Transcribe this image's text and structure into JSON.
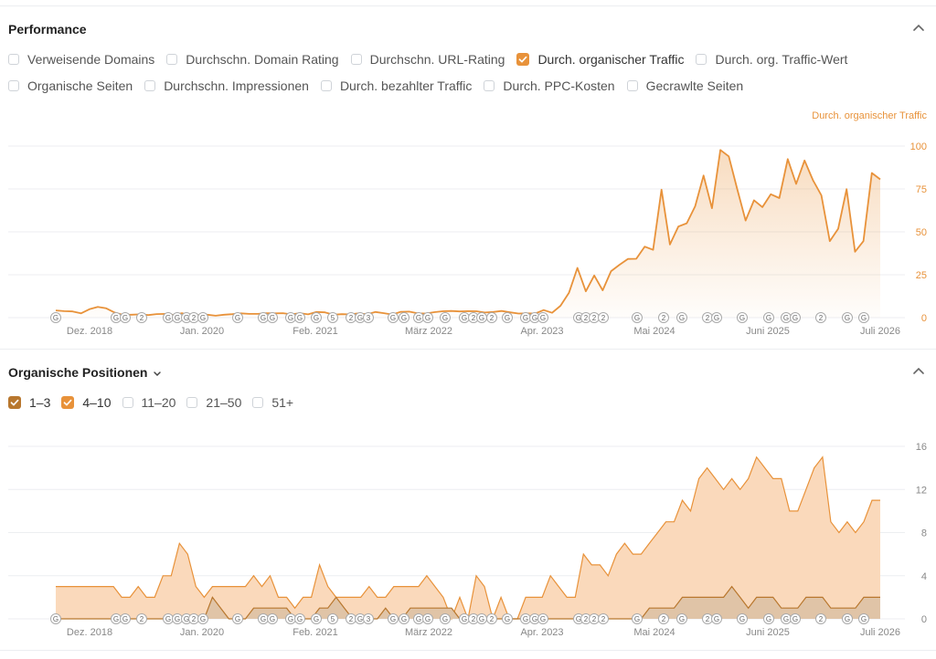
{
  "colors": {
    "orange": "#e8923a",
    "brown": "#b8772e",
    "fill_light": "#fad9bb",
    "fill_brown": "#e0c4a7",
    "grid": "#eceef1",
    "text_muted": "#888888"
  },
  "performance": {
    "title": "Performance",
    "metrics_row1": [
      {
        "label": "Verweisende Domains",
        "checked": false
      },
      {
        "label": "Durchschn. Domain Rating",
        "checked": false
      },
      {
        "label": "Durchschn. URL-Rating",
        "checked": false
      },
      {
        "label": "Durch. organischer Traffic",
        "checked": true
      },
      {
        "label": "Durch. org. Traffic-Wert",
        "checked": false
      }
    ],
    "metrics_row2": [
      {
        "label": "Organische Seiten",
        "checked": false
      },
      {
        "label": "Durchschn. Impressionen",
        "checked": false
      },
      {
        "label": "Durch. bezahlter Traffic",
        "checked": false
      },
      {
        "label": "Durch. PPC-Kosten",
        "checked": false
      },
      {
        "label": "Gecrawlte Seiten",
        "checked": false
      }
    ],
    "series_label": "Durch. organischer Traffic"
  },
  "positions": {
    "title": "Organische Positionen",
    "filters": [
      {
        "label": "1–3",
        "checked": true,
        "color": "#b8772e"
      },
      {
        "label": "4–10",
        "checked": true,
        "color": "#e8923a"
      },
      {
        "label": "11–20",
        "checked": false
      },
      {
        "label": "21–50",
        "checked": false
      },
      {
        "label": "51+",
        "checked": false
      }
    ]
  },
  "chart_data": [
    {
      "type": "area",
      "series": [
        {
          "name": "Durch. organischer Traffic",
          "values": [
            4.2,
            3.8,
            3.6,
            2.5,
            4.9,
            6.3,
            5.4,
            3.0,
            1.6,
            1.7,
            1.9,
            1.5,
            2.1,
            2.2,
            1.6,
            2.6,
            1.1,
            1.5,
            1.7,
            1.1,
            1.7,
            2.0,
            2.5,
            2.2,
            2.2,
            2.6,
            2.5,
            2.6,
            1.9,
            2.6,
            1.9,
            3.3,
            3.1,
            1.7,
            2.0,
            1.9,
            2.5,
            1.9,
            3.3,
            2.6,
            1.8,
            3.4,
            3.5,
            2.5,
            2.4,
            3.2,
            3.7,
            3.9,
            3.6,
            3.8,
            3.7,
            3.0,
            3.3,
            3.9,
            3.1,
            2.4,
            2.5,
            2.4,
            4.4,
            2.8,
            6.9,
            14.4,
            29.0,
            15.3,
            24.6,
            15.9,
            27.1,
            30.8,
            34.2,
            34.3,
            41.4,
            39.5,
            74.6,
            42.6,
            53.1,
            55.0,
            64.9,
            82.8,
            63.8,
            97.7,
            94.0,
            75.0,
            56.6,
            68.4,
            64.4,
            71.9,
            69.7,
            92.4,
            77.9,
            91.6,
            80.1,
            71.3,
            44.6,
            51.8,
            74.9,
            38.4,
            44.6,
            84.3,
            80.6
          ]
        }
      ],
      "x_ticks": [
        "Dez. 2018",
        "Jan. 2020",
        "Feb. 2021",
        "März 2022",
        "Apr. 2023",
        "Mai 2024",
        "Juni 2025",
        "Juli 2026"
      ],
      "y_ticks": [
        0,
        25,
        50,
        75,
        100
      ],
      "ylim": [
        0,
        100
      ],
      "annotations": [
        "G",
        "G",
        "G",
        "2",
        "G",
        "G",
        "G",
        "2",
        "G",
        "G",
        "G",
        "G",
        "G",
        "G",
        "G",
        "5",
        "2",
        "G",
        "3",
        "G",
        "G",
        "G",
        "G",
        "G",
        "G",
        "2",
        "G",
        "2",
        "G",
        "G",
        "G",
        "G",
        "G",
        "2",
        "2",
        "2",
        "G",
        "2",
        "G",
        "2",
        "G",
        "G",
        "G",
        "G",
        "G",
        "2",
        "G",
        "G"
      ]
    },
    {
      "type": "area",
      "series": [
        {
          "name": "4–10",
          "values": [
            3,
            3,
            3,
            3,
            3,
            3,
            3,
            3,
            2,
            2,
            3,
            2,
            2,
            4,
            4,
            7,
            6,
            3,
            2,
            3,
            3,
            3,
            3,
            3,
            4,
            3,
            4,
            2,
            2,
            1,
            2,
            2,
            5,
            3,
            2,
            2,
            2,
            2,
            3,
            2,
            2,
            3,
            3,
            3,
            3,
            4,
            3,
            2,
            0,
            2,
            0,
            4,
            3,
            0,
            2,
            0,
            0,
            2,
            2,
            2,
            4,
            3,
            2,
            2,
            6,
            5,
            5,
            4,
            6,
            7,
            6,
            6,
            7,
            8,
            9,
            9,
            11,
            10,
            13,
            14,
            13,
            12,
            13,
            12,
            13,
            15,
            14,
            13,
            13,
            10,
            10,
            12,
            14,
            15,
            9,
            8,
            9,
            8,
            9,
            11,
            11
          ]
        },
        {
          "name": "1–3",
          "values": [
            0,
            0,
            0,
            0,
            0,
            0,
            0,
            0,
            0,
            0,
            0,
            0,
            0,
            0,
            0,
            0,
            0,
            0,
            0,
            2,
            1,
            0,
            0,
            0,
            1,
            1,
            1,
            1,
            1,
            0,
            0,
            0,
            1,
            1,
            2,
            1,
            0,
            0,
            0,
            0,
            1,
            0,
            0,
            1,
            1,
            1,
            1,
            1,
            1,
            0,
            0,
            0,
            0,
            0,
            0,
            0,
            0,
            0,
            0,
            0,
            0,
            0,
            0,
            0,
            0,
            0,
            0,
            0,
            0,
            0,
            0,
            0,
            1,
            1,
            1,
            1,
            2,
            2,
            2,
            2,
            2,
            2,
            3,
            2,
            1,
            2,
            2,
            2,
            1,
            1,
            1,
            2,
            2,
            2,
            1,
            1,
            1,
            1,
            2,
            2,
            2
          ]
        }
      ],
      "x_ticks": [
        "Dez. 2018",
        "Jan. 2020",
        "Feb. 2021",
        "März 2022",
        "Apr. 2023",
        "Mai 2024",
        "Juni 2025",
        "Juli 2026"
      ],
      "y_ticks": [
        0,
        4,
        8,
        12,
        16
      ],
      "ylim": [
        0,
        16
      ]
    }
  ]
}
